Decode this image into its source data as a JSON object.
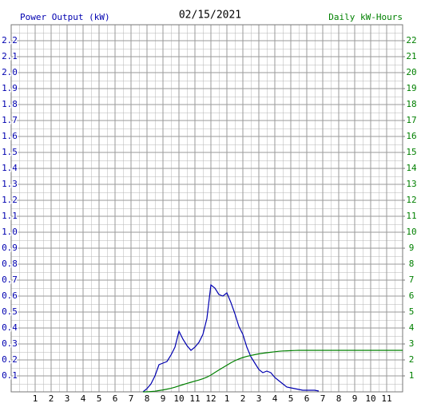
{
  "chart_data": {
    "type": "line",
    "title": "02/15/2021",
    "ylabel": "Power Output (kW)",
    "y2label": "Daily kW-Hours",
    "grid": true,
    "xlim": [
      -0.5,
      24
    ],
    "xticks": [
      1,
      2,
      3,
      4,
      5,
      6,
      7,
      8,
      9,
      10,
      11,
      12,
      {
        "value": 13,
        "label": "1"
      },
      {
        "value": 14,
        "label": "2"
      },
      {
        "value": 15,
        "label": "3"
      },
      {
        "value": 16,
        "label": "4"
      },
      {
        "value": 17,
        "label": "5"
      },
      {
        "value": 18,
        "label": "6"
      },
      {
        "value": 19,
        "label": "7"
      },
      {
        "value": 20,
        "label": "8"
      },
      {
        "value": 21,
        "label": "9"
      },
      {
        "value": 22,
        "label": "10"
      },
      {
        "value": 23,
        "label": "11"
      }
    ],
    "ylim": [
      0,
      2.3
    ],
    "yticks": [
      0.1,
      0.2,
      0.3,
      0.4,
      0.5,
      0.6,
      0.7,
      0.8,
      0.9,
      {
        "value": 1,
        "label": "1.0"
      },
      1.1,
      1.2,
      1.3,
      1.4,
      1.5,
      1.6,
      1.7,
      1.8,
      1.9,
      {
        "value": 2,
        "label": "2.0"
      },
      2.1,
      2.2
    ],
    "y2lim": [
      0,
      23
    ],
    "y2ticks": [
      1,
      2,
      3,
      4,
      5,
      6,
      7,
      8,
      9,
      10,
      11,
      12,
      13,
      14,
      15,
      16,
      17,
      18,
      19,
      20,
      21,
      22
    ],
    "x": [
      7.5,
      7.75,
      8,
      8.25,
      8.5,
      8.75,
      9,
      9.25,
      9.5,
      9.75,
      10,
      10.25,
      10.5,
      10.75,
      11,
      11.25,
      11.5,
      11.75,
      12,
      12.25,
      12.5,
      12.75,
      13,
      13.25,
      13.5,
      13.75,
      14,
      14.25,
      14.5,
      14.75,
      15,
      15.25,
      15.5,
      15.75,
      16,
      16.25,
      16.5,
      16.75,
      17,
      17.25,
      17.5,
      17.75,
      18,
      18.25,
      18.5,
      18.75,
      19,
      19.25,
      19.5,
      19.75,
      20,
      20.25,
      20.5,
      20.75,
      21,
      21.25,
      21.5,
      21.75,
      22,
      22.25,
      22.5,
      22.75,
      23,
      23.25,
      23.5,
      23.75,
      24
    ],
    "series": [
      {
        "color": "#0000b0",
        "axis": "y",
        "values": [
          null,
          0,
          0.02,
          0.05,
          0.1,
          0.17,
          0.18,
          0.19,
          0.23,
          0.28,
          0.38,
          0.33,
          0.29,
          0.26,
          0.28,
          0.31,
          0.36,
          0.46,
          0.67,
          0.65,
          0.61,
          0.6,
          0.62,
          0.56,
          0.49,
          0.41,
          0.36,
          0.28,
          0.22,
          0.18,
          0.14,
          0.12,
          0.13,
          0.12,
          0.09,
          0.07,
          0.05,
          0.03,
          0.025,
          0.02,
          0.015,
          0.01,
          0.01,
          0.01,
          0.01,
          0.005,
          null,
          null,
          null,
          null,
          null,
          null,
          null,
          null,
          null,
          null,
          null,
          null,
          null,
          null,
          null,
          null,
          null,
          null,
          null,
          null,
          null
        ]
      },
      {
        "color": "#008000",
        "axis": "y2",
        "values": [
          null,
          0,
          0,
          0.02,
          0.04,
          0.08,
          0.12,
          0.17,
          0.22,
          0.29,
          0.37,
          0.45,
          0.53,
          0.6,
          0.67,
          0.74,
          0.82,
          0.92,
          1.05,
          1.21,
          1.37,
          1.52,
          1.67,
          1.82,
          1.95,
          2.06,
          2.15,
          2.22,
          2.28,
          2.33,
          2.38,
          2.42,
          2.45,
          2.48,
          2.51,
          2.54,
          2.56,
          2.57,
          2.58,
          2.59,
          2.6,
          2.6,
          2.6,
          2.6,
          2.6,
          2.6,
          2.6,
          2.6,
          2.6,
          2.6,
          2.6,
          2.6,
          2.6,
          2.6,
          2.6,
          2.6,
          2.6,
          2.6,
          2.6,
          2.6,
          2.6,
          2.6,
          2.6,
          2.6,
          2.6,
          2.6,
          2.6
        ]
      }
    ]
  }
}
